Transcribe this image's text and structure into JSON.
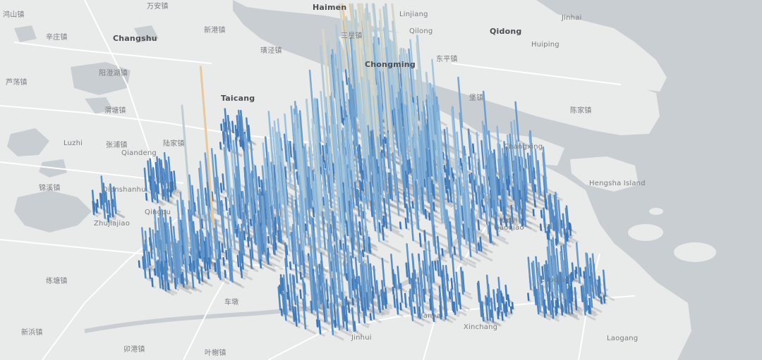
{
  "map": {
    "colors": {
      "land": "#e9eaea",
      "water": "#c7ccd0",
      "road": "#ffffff",
      "bar_low": "#2f6db3",
      "bar_mid_low": "#9cc3e0",
      "bar_mid": "#e9dcc0",
      "bar_mid_high": "#e6a35a",
      "bar_high": "#c81d1d",
      "shadow": "#7b7f84"
    },
    "labels": [
      {
        "text": "Haimen",
        "kind": "city"
      },
      {
        "text": "Linjiang",
        "kind": "town"
      },
      {
        "text": "Jinhai",
        "kind": "town"
      },
      {
        "text": "Qidong",
        "kind": "city"
      },
      {
        "text": "Qilong",
        "kind": "town"
      },
      {
        "text": "Huiping",
        "kind": "town"
      },
      {
        "text": "三星镇",
        "kind": "town"
      },
      {
        "text": "东平镇",
        "kind": "town"
      },
      {
        "text": "Changshu",
        "kind": "city"
      },
      {
        "text": "新港镇",
        "kind": "town"
      },
      {
        "text": "璜泾镇",
        "kind": "town"
      },
      {
        "text": "辛庄镇",
        "kind": "town"
      },
      {
        "text": "Taicang",
        "kind": "city"
      },
      {
        "text": "Chongming",
        "kind": "city"
      },
      {
        "text": "Luzhi",
        "kind": "town"
      },
      {
        "text": "陆家镇",
        "kind": "town"
      },
      {
        "text": "张浦镇",
        "kind": "town"
      },
      {
        "text": "Qiandeng",
        "kind": "town"
      },
      {
        "text": "锦溪镇",
        "kind": "town"
      },
      {
        "text": "Dianshanhu",
        "kind": "town"
      },
      {
        "text": "Zhujiajiao",
        "kind": "town"
      },
      {
        "text": "Qingpu",
        "kind": "town"
      },
      {
        "text": "练塘镇",
        "kind": "town"
      },
      {
        "text": "车墩",
        "kind": "town"
      },
      {
        "text": "新浜镇",
        "kind": "town"
      },
      {
        "text": "卯港镇",
        "kind": "town"
      },
      {
        "text": "叶榭镇",
        "kind": "town"
      },
      {
        "text": "Jinhui",
        "kind": "town"
      },
      {
        "text": "Hanjia",
        "kind": "town"
      },
      {
        "text": "Xinchang",
        "kind": "town"
      },
      {
        "text": "Zhuqiao",
        "kind": "town"
      },
      {
        "text": "Laogang",
        "kind": "town"
      },
      {
        "text": "Gaoqiao",
        "kind": "town"
      },
      {
        "text": "Hengsha Island",
        "kind": "town"
      },
      {
        "text": "Changxing",
        "kind": "town"
      },
      {
        "text": "堡镇",
        "kind": "town"
      },
      {
        "text": "陈家镇",
        "kind": "town"
      },
      {
        "text": "阳澄湖镇",
        "kind": "town"
      },
      {
        "text": "渭塘镇",
        "kind": "town"
      },
      {
        "text": "芦荡镇",
        "kind": "town"
      },
      {
        "text": "鸿山镇",
        "kind": "town"
      },
      {
        "text": "万安镇",
        "kind": "town"
      },
      {
        "text": "Xinyi",
        "kind": "town"
      }
    ]
  }
}
